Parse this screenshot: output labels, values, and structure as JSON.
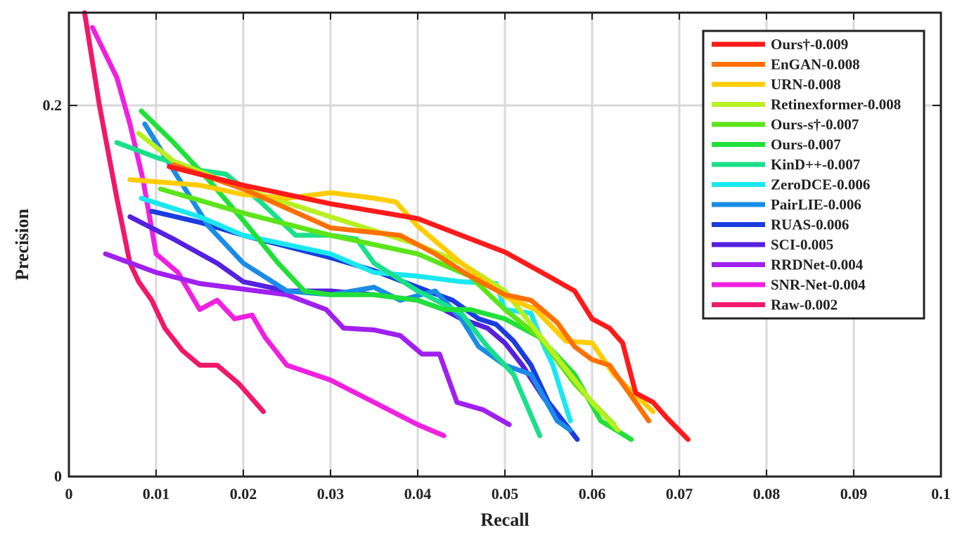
{
  "chart_data": {
    "type": "line",
    "title": "",
    "xlabel": "Recall",
    "ylabel": "Precision",
    "xlim": [
      0,
      0.1
    ],
    "ylim": [
      0,
      0.25
    ],
    "xticks": [
      0,
      0.01,
      0.02,
      0.03,
      0.04,
      0.05,
      0.06,
      0.07,
      0.08,
      0.09,
      0.1
    ],
    "xtick_labels": [
      "0",
      "0.01",
      "0.02",
      "0.03",
      "0.04",
      "0.05",
      "0.06",
      "0.07",
      "0.08",
      "0.09",
      "0.1"
    ],
    "yticks": [
      0,
      0.2
    ],
    "ytick_labels": [
      "0",
      "0.2"
    ],
    "grid": "vertical and horizontal",
    "legend_position": "top-right",
    "series": [
      {
        "name": "Ours†-0.009",
        "color": "#ff1a1a",
        "x": [
          0.0115,
          0.02,
          0.03,
          0.04,
          0.045,
          0.05,
          0.055,
          0.058,
          0.06,
          0.062,
          0.0635,
          0.065,
          0.067,
          0.0685,
          0.071
        ],
        "y": [
          0.167,
          0.157,
          0.147,
          0.139,
          0.13,
          0.121,
          0.108,
          0.1,
          0.085,
          0.08,
          0.072,
          0.045,
          0.04,
          0.032,
          0.02
        ]
      },
      {
        "name": "EnGAN-0.008",
        "color": "#ff7000",
        "x": [
          0.012,
          0.02,
          0.03,
          0.038,
          0.042,
          0.046,
          0.05,
          0.053,
          0.056,
          0.058,
          0.06,
          0.062,
          0.0665
        ],
        "y": [
          0.168,
          0.155,
          0.134,
          0.13,
          0.12,
          0.108,
          0.098,
          0.095,
          0.083,
          0.07,
          0.063,
          0.06,
          0.03
        ]
      },
      {
        "name": "URN-0.008",
        "color": "#ffcc00",
        "x": [
          0.007,
          0.015,
          0.02,
          0.025,
          0.03,
          0.035,
          0.0375,
          0.04,
          0.045,
          0.05,
          0.0535,
          0.057,
          0.06,
          0.0625,
          0.067
        ],
        "y": [
          0.16,
          0.157,
          0.152,
          0.15,
          0.153,
          0.15,
          0.148,
          0.135,
          0.115,
          0.097,
          0.09,
          0.073,
          0.072,
          0.055,
          0.035
        ]
      },
      {
        "name": "Retinexformer-0.008",
        "color": "#b8f020",
        "x": [
          0.008,
          0.012,
          0.02,
          0.03,
          0.04,
          0.045,
          0.05,
          0.055,
          0.06,
          0.063
        ],
        "y": [
          0.185,
          0.17,
          0.155,
          0.14,
          0.125,
          0.115,
          0.1,
          0.07,
          0.04,
          0.025
        ]
      },
      {
        "name": "Ours-s†-0.007",
        "color": "#5ce51a",
        "x": [
          0.0105,
          0.02,
          0.03,
          0.04,
          0.046,
          0.05,
          0.054,
          0.058,
          0.0625
        ],
        "y": [
          0.155,
          0.142,
          0.13,
          0.12,
          0.108,
          0.09,
          0.075,
          0.05,
          0.028
        ]
      },
      {
        "name": "Ours-0.007",
        "color": "#20e03a",
        "x": [
          0.0083,
          0.012,
          0.016,
          0.02,
          0.024,
          0.027,
          0.03,
          0.035,
          0.04,
          0.043,
          0.046,
          0.05,
          0.054,
          0.058,
          0.061,
          0.0645
        ],
        "y": [
          0.197,
          0.18,
          0.16,
          0.138,
          0.115,
          0.1,
          0.098,
          0.098,
          0.095,
          0.09,
          0.09,
          0.085,
          0.075,
          0.055,
          0.03,
          0.02
        ]
      },
      {
        "name": "KinD++-0.007",
        "color": "#1ae08a",
        "x": [
          0.0055,
          0.01,
          0.015,
          0.018,
          0.022,
          0.026,
          0.03,
          0.033,
          0.035,
          0.04,
          0.045,
          0.048,
          0.051,
          0.054
        ],
        "y": [
          0.18,
          0.172,
          0.165,
          0.163,
          0.148,
          0.13,
          0.13,
          0.128,
          0.115,
          0.1,
          0.088,
          0.07,
          0.055,
          0.022
        ]
      },
      {
        "name": "ZeroDCE-0.006",
        "color": "#1ae8f0",
        "x": [
          0.0083,
          0.015,
          0.02,
          0.025,
          0.03,
          0.035,
          0.04,
          0.045,
          0.049,
          0.05,
          0.053,
          0.0545,
          0.0555,
          0.0575
        ],
        "y": [
          0.15,
          0.14,
          0.13,
          0.125,
          0.12,
          0.11,
          0.108,
          0.105,
          0.104,
          0.09,
          0.088,
          0.07,
          0.06,
          0.03
        ]
      },
      {
        "name": "PairLIE-0.006",
        "color": "#1a8ce8",
        "x": [
          0.0087,
          0.012,
          0.016,
          0.02,
          0.025,
          0.03,
          0.035,
          0.038,
          0.042,
          0.045,
          0.047,
          0.05,
          0.053,
          0.056,
          0.0575
        ],
        "y": [
          0.19,
          0.165,
          0.135,
          0.115,
          0.1,
          0.098,
          0.102,
          0.095,
          0.1,
          0.085,
          0.07,
          0.06,
          0.055,
          0.03,
          0.025
        ]
      },
      {
        "name": "RUAS-0.006",
        "color": "#1a3ce0",
        "x": [
          0.0095,
          0.015,
          0.02,
          0.025,
          0.03,
          0.035,
          0.04,
          0.044,
          0.047,
          0.049,
          0.051,
          0.053,
          0.055,
          0.0583
        ],
        "y": [
          0.143,
          0.137,
          0.13,
          0.124,
          0.118,
          0.111,
          0.102,
          0.095,
          0.085,
          0.082,
          0.073,
          0.06,
          0.04,
          0.02
        ]
      },
      {
        "name": "SCI-0.005",
        "color": "#5520e0",
        "x": [
          0.007,
          0.012,
          0.017,
          0.02,
          0.025,
          0.03,
          0.035,
          0.04,
          0.043,
          0.045,
          0.048,
          0.05,
          0.052,
          0.0545,
          0.0575
        ],
        "y": [
          0.14,
          0.128,
          0.115,
          0.105,
          0.1,
          0.1,
          0.098,
          0.095,
          0.09,
          0.085,
          0.08,
          0.072,
          0.06,
          0.042,
          0.025
        ]
      },
      {
        "name": "RRDNet-0.004",
        "color": "#a020f0",
        "x": [
          0.0042,
          0.01,
          0.015,
          0.02,
          0.025,
          0.0295,
          0.0315,
          0.035,
          0.038,
          0.0405,
          0.0425,
          0.0445,
          0.0475,
          0.0505
        ],
        "y": [
          0.12,
          0.11,
          0.104,
          0.101,
          0.098,
          0.09,
          0.08,
          0.079,
          0.076,
          0.066,
          0.066,
          0.04,
          0.036,
          0.028
        ]
      },
      {
        "name": "SNR-Net-0.004",
        "color": "#f020e0",
        "x": [
          0.0027,
          0.0055,
          0.007,
          0.0085,
          0.01,
          0.0125,
          0.015,
          0.017,
          0.019,
          0.021,
          0.0225,
          0.025,
          0.03,
          0.035,
          0.04,
          0.043
        ],
        "y": [
          0.242,
          0.215,
          0.19,
          0.16,
          0.12,
          0.11,
          0.09,
          0.095,
          0.085,
          0.087,
          0.075,
          0.06,
          0.052,
          0.04,
          0.028,
          0.022
        ]
      },
      {
        "name": "Raw-0.002",
        "color": "#f0186a",
        "x": [
          0.0018,
          0.0035,
          0.0055,
          0.007,
          0.008,
          0.0095,
          0.011,
          0.013,
          0.015,
          0.017,
          0.0195,
          0.0223
        ],
        "y": [
          0.25,
          0.2,
          0.15,
          0.115,
          0.105,
          0.095,
          0.08,
          0.068,
          0.06,
          0.06,
          0.05,
          0.035
        ]
      }
    ]
  }
}
